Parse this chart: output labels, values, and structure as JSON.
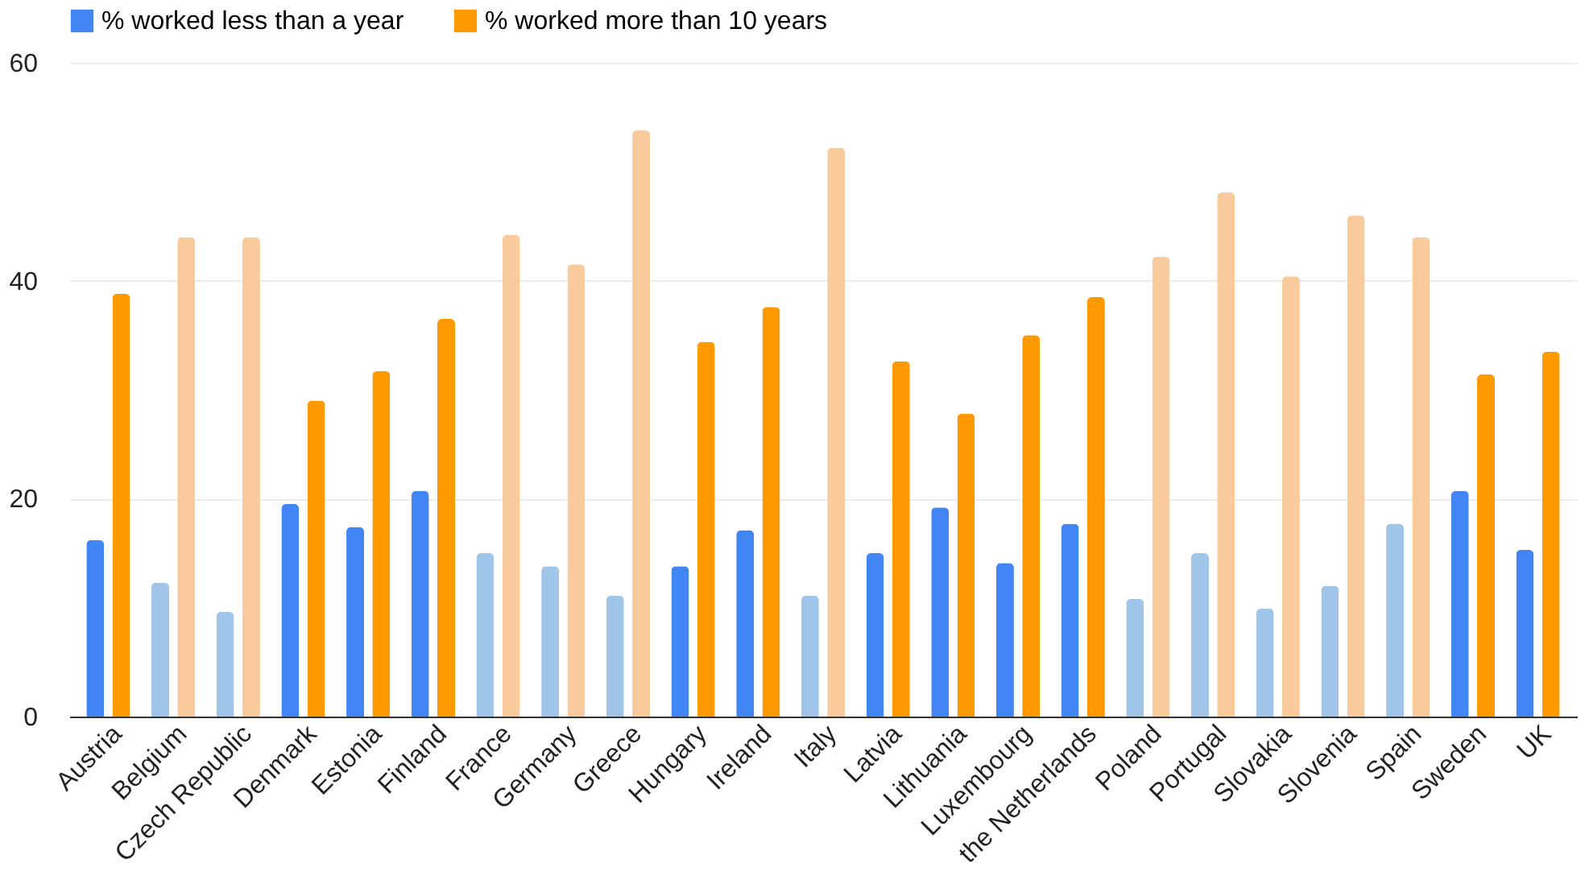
{
  "chart_data": {
    "type": "bar",
    "categories": [
      "Austria",
      "Belgium",
      "Czech Republic",
      "Denmark",
      "Estonia",
      "Finland",
      "France",
      "Germany",
      "Greece",
      "Hungary",
      "Ireland",
      "Italy",
      "Latvia",
      "Lithuania",
      "Luxembourg",
      "the Netherlands",
      "Poland",
      "Portugal",
      "Slovakia",
      "Slovenia",
      "Spain",
      "Sweden",
      "UK"
    ],
    "series": [
      {
        "name": "% worked less than a year",
        "color": "#4285f4",
        "values": [
          16.2,
          12.3,
          9.6,
          19.5,
          17.4,
          20.7,
          15,
          13.8,
          11.1,
          13.8,
          17.1,
          11.1,
          15,
          19.2,
          14.1,
          17.7,
          10.8,
          15,
          9.9,
          12,
          17.7,
          20.7,
          15.3
        ],
        "colors": [
          "#4285f4",
          "#9fc5e8",
          "#9fc5e8",
          "#4285f4",
          "#4285f4",
          "#4285f4",
          "#9fc5e8",
          "#9fc5e8",
          "#9fc5e8",
          "#4285f4",
          "#4285f4",
          "#9fc5e8",
          "#4285f4",
          "#4285f4",
          "#4285f4",
          "#4285f4",
          "#9fc5e8",
          "#9fc5e8",
          "#9fc5e8",
          "#9fc5e8",
          "#9fc5e8",
          "#4285f4",
          "#4285f4"
        ]
      },
      {
        "name": "% worked more than 10 years",
        "color": "#ff9900",
        "values": [
          38.8,
          44,
          44,
          29,
          31.7,
          36.5,
          44.2,
          41.5,
          53.8,
          34.4,
          37.6,
          52.2,
          32.6,
          27.8,
          35,
          38.5,
          42.2,
          48.1,
          40.4,
          46,
          44,
          31.4,
          33.5
        ],
        "colors": [
          "#ff9900",
          "#f9cb9c",
          "#f9cb9c",
          "#ff9900",
          "#ff9900",
          "#ff9900",
          "#f9cb9c",
          "#f9cb9c",
          "#f9cb9c",
          "#ff9900",
          "#ff9900",
          "#f9cb9c",
          "#ff9900",
          "#ff9900",
          "#ff9900",
          "#ff9900",
          "#f9cb9c",
          "#f9cb9c",
          "#f9cb9c",
          "#f9cb9c",
          "#f9cb9c",
          "#ff9900",
          "#ff9900"
        ]
      }
    ],
    "ylim": [
      0,
      60
    ],
    "yticks": [
      0,
      20,
      40,
      60
    ],
    "grid": "y",
    "legend": "top"
  }
}
